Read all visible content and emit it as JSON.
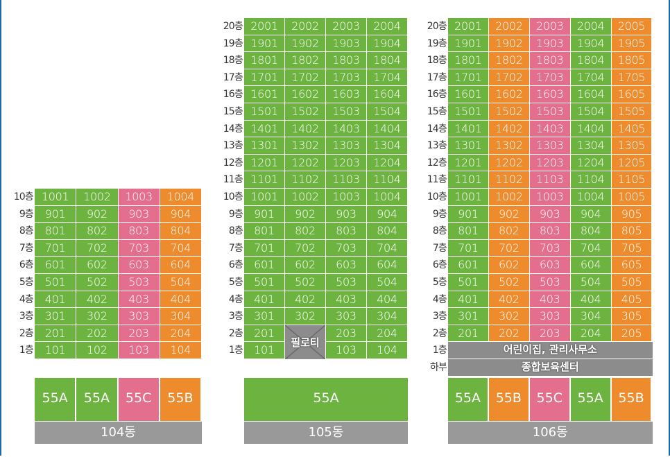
{
  "colors": {
    "green": "#6db33f",
    "pink": "#e36f8d",
    "orange": "#ee8b2c",
    "gray": "#8c8c8c",
    "bar": "#999999"
  },
  "buildings": [
    {
      "name": "104동",
      "floors": [
        {
          "floor": "10층",
          "units": [
            "1001",
            "1002",
            "1003",
            "1004"
          ]
        },
        {
          "floor": "9층",
          "units": [
            "901",
            "902",
            "903",
            "904"
          ]
        },
        {
          "floor": "8층",
          "units": [
            "801",
            "802",
            "803",
            "804"
          ]
        },
        {
          "floor": "7층",
          "units": [
            "701",
            "702",
            "703",
            "704"
          ]
        },
        {
          "floor": "6층",
          "units": [
            "601",
            "602",
            "603",
            "604"
          ]
        },
        {
          "floor": "5층",
          "units": [
            "501",
            "502",
            "503",
            "504"
          ]
        },
        {
          "floor": "4층",
          "units": [
            "401",
            "402",
            "403",
            "404"
          ]
        },
        {
          "floor": "3층",
          "units": [
            "301",
            "302",
            "303",
            "304"
          ]
        },
        {
          "floor": "2층",
          "units": [
            "201",
            "202",
            "203",
            "204"
          ]
        },
        {
          "floor": "1층",
          "units": [
            "101",
            "102",
            "103",
            "104"
          ]
        }
      ],
      "column_types": [
        "55A",
        "55A",
        "55C",
        "55B"
      ]
    },
    {
      "name": "105동",
      "floors": [
        {
          "floor": "20층",
          "units": [
            "2001",
            "2002",
            "2003",
            "2004"
          ]
        },
        {
          "floor": "19층",
          "units": [
            "1901",
            "1902",
            "1903",
            "1904"
          ]
        },
        {
          "floor": "18층",
          "units": [
            "1801",
            "1802",
            "1803",
            "1804"
          ]
        },
        {
          "floor": "17층",
          "units": [
            "1701",
            "1702",
            "1703",
            "1704"
          ]
        },
        {
          "floor": "16층",
          "units": [
            "1601",
            "1602",
            "1603",
            "1604"
          ]
        },
        {
          "floor": "15층",
          "units": [
            "1501",
            "1502",
            "1503",
            "1504"
          ]
        },
        {
          "floor": "14층",
          "units": [
            "1401",
            "1402",
            "1403",
            "1404"
          ]
        },
        {
          "floor": "13층",
          "units": [
            "1301",
            "1302",
            "1303",
            "1304"
          ]
        },
        {
          "floor": "12층",
          "units": [
            "1201",
            "1202",
            "1203",
            "1204"
          ]
        },
        {
          "floor": "11층",
          "units": [
            "1101",
            "1102",
            "1103",
            "1104"
          ]
        },
        {
          "floor": "10층",
          "units": [
            "1001",
            "1002",
            "1003",
            "1004"
          ]
        },
        {
          "floor": "9층",
          "units": [
            "901",
            "902",
            "903",
            "904"
          ]
        },
        {
          "floor": "8층",
          "units": [
            "801",
            "802",
            "803",
            "804"
          ]
        },
        {
          "floor": "7층",
          "units": [
            "701",
            "702",
            "703",
            "704"
          ]
        },
        {
          "floor": "6층",
          "units": [
            "601",
            "602",
            "603",
            "604"
          ]
        },
        {
          "floor": "5층",
          "units": [
            "501",
            "502",
            "503",
            "504"
          ]
        },
        {
          "floor": "4층",
          "units": [
            "401",
            "402",
            "403",
            "404"
          ]
        },
        {
          "floor": "3층",
          "units": [
            "301",
            "302",
            "303",
            "304"
          ]
        },
        {
          "floor": "2층",
          "units": [
            "201",
            "",
            "203",
            "204"
          ]
        },
        {
          "floor": "1층",
          "units": [
            "101",
            "",
            "103",
            "104"
          ]
        }
      ],
      "piloti_label": "필로티",
      "column_types": [
        "55A"
      ]
    },
    {
      "name": "106동",
      "floors": [
        {
          "floor": "20층",
          "units": [
            "2001",
            "2002",
            "2003",
            "2004",
            "2005"
          ]
        },
        {
          "floor": "19층",
          "units": [
            "1901",
            "1902",
            "1903",
            "1904",
            "1905"
          ]
        },
        {
          "floor": "18층",
          "units": [
            "1801",
            "1802",
            "1803",
            "1804",
            "1805"
          ]
        },
        {
          "floor": "17층",
          "units": [
            "1701",
            "1702",
            "1703",
            "1704",
            "1705"
          ]
        },
        {
          "floor": "16층",
          "units": [
            "1601",
            "1602",
            "1603",
            "1604",
            "1605"
          ]
        },
        {
          "floor": "15층",
          "units": [
            "1501",
            "1502",
            "1503",
            "1504",
            "1505"
          ]
        },
        {
          "floor": "14층",
          "units": [
            "1401",
            "1402",
            "1403",
            "1404",
            "1405"
          ]
        },
        {
          "floor": "13층",
          "units": [
            "1301",
            "1302",
            "1303",
            "1304",
            "1305"
          ]
        },
        {
          "floor": "12층",
          "units": [
            "1201",
            "1202",
            "1203",
            "1204",
            "1205"
          ]
        },
        {
          "floor": "11층",
          "units": [
            "1101",
            "1102",
            "1103",
            "1104",
            "1105"
          ]
        },
        {
          "floor": "10층",
          "units": [
            "1001",
            "1002",
            "1003",
            "1004",
            "1005"
          ]
        },
        {
          "floor": "9층",
          "units": [
            "901",
            "902",
            "903",
            "904",
            "905"
          ]
        },
        {
          "floor": "8층",
          "units": [
            "801",
            "802",
            "803",
            "804",
            "805"
          ]
        },
        {
          "floor": "7층",
          "units": [
            "701",
            "702",
            "703",
            "704",
            "705"
          ]
        },
        {
          "floor": "6층",
          "units": [
            "601",
            "602",
            "603",
            "604",
            "605"
          ]
        },
        {
          "floor": "5층",
          "units": [
            "501",
            "502",
            "503",
            "504",
            "505"
          ]
        },
        {
          "floor": "4층",
          "units": [
            "401",
            "402",
            "403",
            "404",
            "405"
          ]
        },
        {
          "floor": "3층",
          "units": [
            "301",
            "302",
            "303",
            "304",
            "305"
          ]
        },
        {
          "floor": "2층",
          "units": [
            "201",
            "202",
            "203",
            "204",
            "205"
          ]
        }
      ],
      "first_floor_label": "1층",
      "first_floor_text": "어린이집, 관리사무소",
      "basement_label": "하부",
      "basement_text": "종합보육센터",
      "column_types": [
        "55A",
        "55B",
        "55C",
        "55A",
        "55B"
      ]
    }
  ]
}
